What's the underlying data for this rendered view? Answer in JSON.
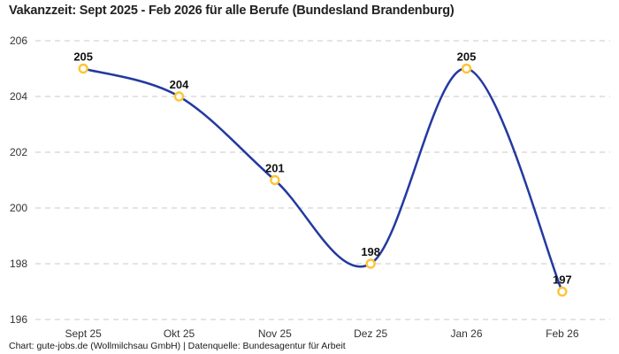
{
  "title": "Vakanzzeit: Sept 2025 - Feb 2026 für alle Berufe (Bundesland Brandenburg)",
  "footer": "Chart: gute-jobs.de (Wollmilchsau GmbH) | Datenquelle: Bundesagentur für Arbeit",
  "chart_data": {
    "type": "line",
    "title": "Vakanzzeit: Sept 2025 - Feb 2026 für alle Berufe (Bundesland Brandenburg)",
    "categories": [
      "Sept 25",
      "Okt 25",
      "Nov 25",
      "Dez 25",
      "Jan 26",
      "Feb 26"
    ],
    "values": [
      205,
      204,
      201,
      198,
      205,
      197
    ],
    "xlabel": "",
    "ylabel": "",
    "ylim": [
      196,
      206
    ],
    "yticks": [
      206,
      204,
      202,
      200,
      198,
      196
    ],
    "grid": true,
    "grid_style": "dashed",
    "legend": false,
    "smooth": true,
    "data_labels": true,
    "colors": {
      "line": "#2439a0",
      "marker_ring": "#fdc434",
      "marker_fill": "#ffffff",
      "grid": "#c9c9c9",
      "tick_text": "#333333",
      "label_text": "#111111",
      "title_text": "#222222",
      "background": "#ffffff"
    }
  }
}
